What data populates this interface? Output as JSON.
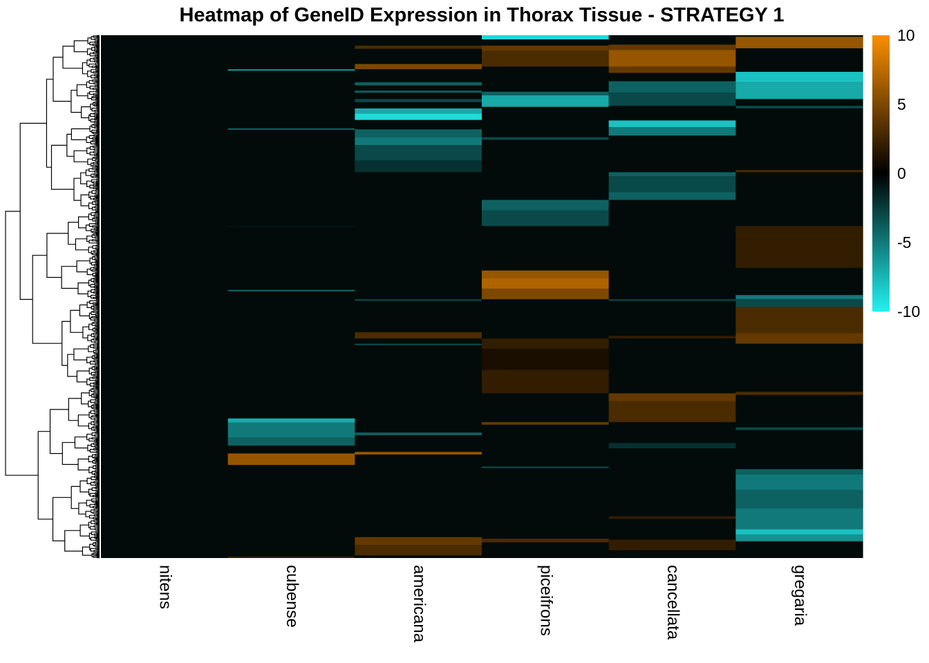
{
  "chart_data": {
    "type": "heatmap",
    "title": "Heatmap of GeneID Expression in Thorax Tissue - STRATEGY 1",
    "columns": [
      "nitens",
      "cubense",
      "americana",
      "piceifrons",
      "cancellata",
      "gregaria"
    ],
    "row_count": 760,
    "value_range": [
      -10,
      10
    ],
    "colorbar": {
      "ticks": [
        10,
        5,
        0,
        -5,
        -10
      ],
      "low_color": "#22f2f2",
      "mid_color": "#000000",
      "high_color": "#fa8f00"
    },
    "dendrogram": "rows",
    "bands": {
      "nitens": [],
      "cubense": [
        [
          0.065,
          0.068,
          -6
        ],
        [
          0.178,
          0.181,
          -4
        ],
        [
          0.365,
          0.367,
          -1
        ],
        [
          0.487,
          0.49,
          -4
        ],
        [
          0.733,
          0.741,
          -7
        ],
        [
          0.741,
          0.77,
          -5
        ],
        [
          0.77,
          0.785,
          -4
        ],
        [
          0.8,
          0.822,
          6
        ],
        [
          0.997,
          1.0,
          2
        ]
      ],
      "americana": [
        [
          0.02,
          0.026,
          3
        ],
        [
          0.055,
          0.065,
          5
        ],
        [
          0.09,
          0.096,
          -4
        ],
        [
          0.106,
          0.11,
          -4
        ],
        [
          0.122,
          0.128,
          -3
        ],
        [
          0.14,
          0.15,
          -7
        ],
        [
          0.15,
          0.162,
          -9
        ],
        [
          0.18,
          0.195,
          -4
        ],
        [
          0.195,
          0.21,
          -5
        ],
        [
          0.21,
          0.24,
          -3
        ],
        [
          0.24,
          0.262,
          -2
        ],
        [
          0.505,
          0.508,
          -3
        ],
        [
          0.568,
          0.58,
          3
        ],
        [
          0.59,
          0.593,
          -3
        ],
        [
          0.76,
          0.765,
          -4
        ],
        [
          0.797,
          0.802,
          6
        ],
        [
          0.96,
          0.975,
          4
        ],
        [
          0.975,
          0.995,
          3
        ]
      ],
      "piceifrons": [
        [
          0.0,
          0.008,
          -9
        ],
        [
          0.02,
          0.03,
          4
        ],
        [
          0.03,
          0.06,
          3
        ],
        [
          0.108,
          0.115,
          -4
        ],
        [
          0.115,
          0.137,
          -7
        ],
        [
          0.195,
          0.2,
          -3
        ],
        [
          0.315,
          0.335,
          -4
        ],
        [
          0.335,
          0.365,
          -3
        ],
        [
          0.45,
          0.465,
          6
        ],
        [
          0.465,
          0.485,
          7
        ],
        [
          0.485,
          0.505,
          5
        ],
        [
          0.58,
          0.6,
          2
        ],
        [
          0.6,
          0.64,
          1
        ],
        [
          0.64,
          0.685,
          2
        ],
        [
          0.74,
          0.745,
          4
        ],
        [
          0.825,
          0.828,
          -3
        ],
        [
          0.963,
          0.97,
          3
        ]
      ],
      "cancellata": [
        [
          0.018,
          0.028,
          4
        ],
        [
          0.028,
          0.06,
          6
        ],
        [
          0.06,
          0.072,
          4
        ],
        [
          0.088,
          0.11,
          -4
        ],
        [
          0.11,
          0.135,
          -3
        ],
        [
          0.163,
          0.176,
          -8
        ],
        [
          0.176,
          0.192,
          -5
        ],
        [
          0.262,
          0.27,
          -4
        ],
        [
          0.27,
          0.3,
          -3
        ],
        [
          0.3,
          0.315,
          -4
        ],
        [
          0.505,
          0.508,
          -3
        ],
        [
          0.575,
          0.58,
          2
        ],
        [
          0.685,
          0.7,
          4
        ],
        [
          0.7,
          0.74,
          3
        ],
        [
          0.78,
          0.79,
          -2
        ],
        [
          0.92,
          0.925,
          2
        ],
        [
          0.965,
          0.985,
          2
        ]
      ],
      "gregaria": [
        [
          0.003,
          0.025,
          6
        ],
        [
          0.07,
          0.09,
          -8
        ],
        [
          0.09,
          0.122,
          -7
        ],
        [
          0.135,
          0.14,
          -3
        ],
        [
          0.258,
          0.262,
          3
        ],
        [
          0.365,
          0.39,
          2
        ],
        [
          0.39,
          0.445,
          2
        ],
        [
          0.497,
          0.505,
          -5
        ],
        [
          0.505,
          0.52,
          -3
        ],
        [
          0.52,
          0.57,
          3
        ],
        [
          0.57,
          0.59,
          4
        ],
        [
          0.682,
          0.688,
          3
        ],
        [
          0.75,
          0.755,
          -3
        ],
        [
          0.83,
          0.84,
          -4
        ],
        [
          0.84,
          0.87,
          -5
        ],
        [
          0.87,
          0.905,
          -4
        ],
        [
          0.905,
          0.945,
          -5
        ],
        [
          0.945,
          0.955,
          -8
        ],
        [
          0.955,
          0.968,
          -6
        ]
      ]
    }
  }
}
